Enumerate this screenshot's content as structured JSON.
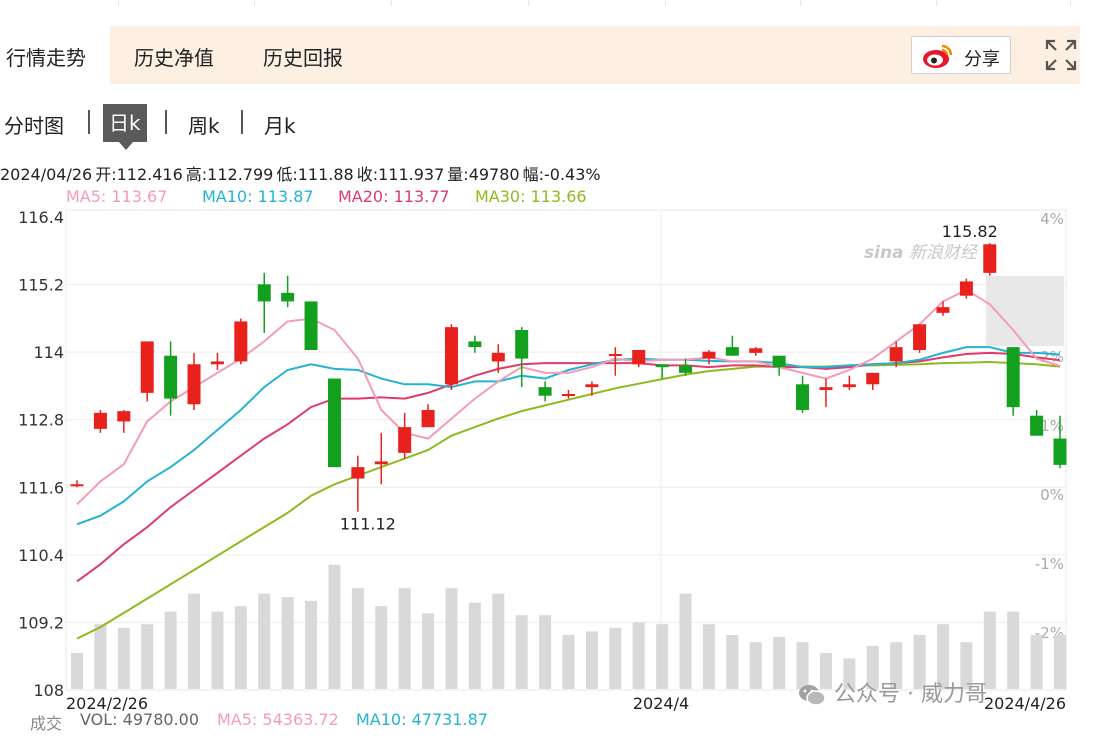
{
  "tabs": {
    "market": "行情走势",
    "nav_history": "历史净值",
    "return_history": "历史回报",
    "share": "分享"
  },
  "subtabs": [
    "分时图",
    "日k",
    "周k",
    "月k"
  ],
  "info": {
    "date": "2024/04/26",
    "open": "开:112.416",
    "high": "高:112.799",
    "low": "低:111.88",
    "close": "收:111.937",
    "volume": "量:49780",
    "change": "幅:-0.43%"
  },
  "ma_legend": [
    {
      "label": "MA5: 113.67",
      "color": "#f49cb6"
    },
    {
      "label": "MA10: 113.87",
      "color": "#25b3d4"
    },
    {
      "label": "MA20: 113.77",
      "color": "#e03b6a"
    },
    {
      "label": "MA30: 113.66",
      "color": "#8fba1d"
    }
  ],
  "vol_legend": {
    "title": "成交",
    "vol": "VOL: 49780.00",
    "ma5": "MA5: 54363.72",
    "ma10": "MA10: 47731.87"
  },
  "watermarks": {
    "sina_logo": "sina",
    "sina": "新浪财经",
    "wechat": "公众号 · 威力哥"
  },
  "colors": {
    "up": "#e8211c",
    "down": "#12a01e",
    "volume": "#d9d9d9",
    "ma5": "#f49cb6",
    "ma10": "#25b3d4",
    "ma20": "#e03b6a",
    "ma30": "#8fba1d"
  },
  "chart_data": {
    "type": "candlestick",
    "y_ticks": [
      "116.4",
      "115.2",
      "114",
      "112.8",
      "111.6",
      "110.4",
      "109.2",
      "108"
    ],
    "pct_ticks": [
      "4%",
      "3%",
      "2%",
      "1%",
      "0%",
      "-1%",
      "-2%"
    ],
    "x_ticks": [
      "2024/2/26",
      "2024/4",
      "2024/4/26"
    ],
    "ylim": [
      108,
      116.4
    ],
    "annotations": {
      "high": "115.82",
      "low": "111.12"
    },
    "candles": [
      {
        "o": 111.6,
        "h": 111.67,
        "l": 111.55,
        "c": 111.6,
        "up": true
      },
      {
        "o": 112.57,
        "h": 112.9,
        "l": 112.5,
        "c": 112.85,
        "up": true
      },
      {
        "o": 112.7,
        "h": 112.9,
        "l": 112.5,
        "c": 112.88,
        "up": true
      },
      {
        "o": 113.2,
        "h": 114.1,
        "l": 113.05,
        "c": 114.1,
        "up": true
      },
      {
        "o": 113.85,
        "h": 114.1,
        "l": 112.8,
        "c": 113.1,
        "up": false
      },
      {
        "o": 113.0,
        "h": 113.9,
        "l": 112.9,
        "c": 113.7,
        "up": true
      },
      {
        "o": 113.7,
        "h": 113.9,
        "l": 113.6,
        "c": 113.75,
        "up": true
      },
      {
        "o": 113.75,
        "h": 114.5,
        "l": 113.7,
        "c": 114.45,
        "up": true
      },
      {
        "o": 115.1,
        "h": 115.3,
        "l": 114.25,
        "c": 114.8,
        "up": false
      },
      {
        "o": 114.95,
        "h": 115.25,
        "l": 114.7,
        "c": 114.8,
        "up": false
      },
      {
        "o": 114.8,
        "h": 114.8,
        "l": 113.95,
        "c": 113.95,
        "up": false
      },
      {
        "o": 113.45,
        "h": 113.45,
        "l": 111.95,
        "c": 111.9,
        "up": false
      },
      {
        "o": 111.7,
        "h": 112.1,
        "l": 111.12,
        "c": 111.9,
        "up": true
      },
      {
        "o": 111.95,
        "h": 112.5,
        "l": 111.6,
        "c": 112.0,
        "up": true
      },
      {
        "o": 112.15,
        "h": 112.85,
        "l": 112.05,
        "c": 112.6,
        "up": true
      },
      {
        "o": 112.6,
        "h": 113.0,
        "l": 112.6,
        "c": 112.9,
        "up": true
      },
      {
        "o": 113.35,
        "h": 114.4,
        "l": 113.25,
        "c": 114.35,
        "up": true
      },
      {
        "o": 114.1,
        "h": 114.2,
        "l": 113.9,
        "c": 114.0,
        "up": false
      },
      {
        "o": 113.75,
        "h": 114.05,
        "l": 113.55,
        "c": 113.9,
        "up": true
      },
      {
        "o": 114.3,
        "h": 114.35,
        "l": 113.3,
        "c": 113.8,
        "up": false
      },
      {
        "o": 113.3,
        "h": 113.4,
        "l": 113.05,
        "c": 113.15,
        "up": false
      },
      {
        "o": 113.15,
        "h": 113.25,
        "l": 113.1,
        "c": 113.18,
        "up": true
      },
      {
        "o": 113.3,
        "h": 113.4,
        "l": 113.15,
        "c": 113.35,
        "up": true
      },
      {
        "o": 113.85,
        "h": 114.0,
        "l": 113.5,
        "c": 113.88,
        "up": true
      },
      {
        "o": 113.7,
        "h": 113.95,
        "l": 113.65,
        "c": 113.95,
        "up": true
      },
      {
        "o": 113.7,
        "h": 113.7,
        "l": 113.45,
        "c": 113.65,
        "up": false
      },
      {
        "o": 113.68,
        "h": 113.8,
        "l": 113.5,
        "c": 113.55,
        "up": false
      },
      {
        "o": 113.8,
        "h": 113.95,
        "l": 113.7,
        "c": 113.92,
        "up": true
      },
      {
        "o": 114.0,
        "h": 114.2,
        "l": 113.85,
        "c": 113.85,
        "up": false
      },
      {
        "o": 113.9,
        "h": 114.0,
        "l": 113.85,
        "c": 113.98,
        "up": true
      },
      {
        "o": 113.85,
        "h": 113.85,
        "l": 113.5,
        "c": 113.65,
        "up": false
      },
      {
        "o": 113.35,
        "h": 113.5,
        "l": 112.85,
        "c": 112.9,
        "up": false
      },
      {
        "o": 113.25,
        "h": 113.45,
        "l": 112.95,
        "c": 113.3,
        "up": true
      },
      {
        "o": 113.3,
        "h": 113.5,
        "l": 113.25,
        "c": 113.35,
        "up": true
      },
      {
        "o": 113.35,
        "h": 113.55,
        "l": 113.25,
        "c": 113.55,
        "up": true
      },
      {
        "o": 113.75,
        "h": 114.1,
        "l": 113.65,
        "c": 114.0,
        "up": true
      },
      {
        "o": 113.95,
        "h": 114.4,
        "l": 113.9,
        "c": 114.4,
        "up": true
      },
      {
        "o": 114.6,
        "h": 114.8,
        "l": 114.55,
        "c": 114.7,
        "up": true
      },
      {
        "o": 114.9,
        "h": 115.2,
        "l": 114.85,
        "c": 115.15,
        "up": true
      },
      {
        "o": 115.3,
        "h": 115.82,
        "l": 115.25,
        "c": 115.8,
        "up": true
      },
      {
        "o": 114.0,
        "h": 114.0,
        "l": 112.8,
        "c": 112.95,
        "up": false
      },
      {
        "o": 112.8,
        "h": 112.9,
        "l": 112.45,
        "c": 112.45,
        "up": false
      },
      {
        "o": 112.4,
        "h": 112.8,
        "l": 111.88,
        "c": 111.94,
        "up": false
      }
    ],
    "volume": [
      0.2,
      0.36,
      0.34,
      0.36,
      0.43,
      0.53,
      0.43,
      0.46,
      0.53,
      0.51,
      0.49,
      0.69,
      0.56,
      0.46,
      0.56,
      0.42,
      0.56,
      0.48,
      0.53,
      0.41,
      0.41,
      0.3,
      0.32,
      0.34,
      0.37,
      0.36,
      0.53,
      0.36,
      0.3,
      0.26,
      0.29,
      0.26,
      0.2,
      0.17,
      0.24,
      0.26,
      0.3,
      0.36,
      0.26,
      0.43,
      0.43,
      0.3,
      0.3
    ],
    "ma5": [
      111.25,
      111.65,
      111.95,
      112.7,
      113.05,
      113.3,
      113.55,
      113.8,
      114.1,
      114.45,
      114.5,
      114.3,
      113.8,
      112.9,
      112.5,
      112.4,
      112.75,
      113.1,
      113.4,
      113.65,
      113.55,
      113.55,
      113.65,
      113.8,
      113.75,
      113.78,
      113.78,
      113.82,
      113.75,
      113.75,
      113.65,
      113.55,
      113.45,
      113.6,
      113.8,
      114.1,
      114.4,
      114.8,
      115.0,
      114.75,
      114.3,
      113.8,
      113.67
    ],
    "ma10": [
      110.9,
      111.05,
      111.3,
      111.65,
      111.9,
      112.2,
      112.55,
      112.9,
      113.3,
      113.6,
      113.7,
      113.62,
      113.6,
      113.45,
      113.35,
      113.35,
      113.3,
      113.4,
      113.4,
      113.5,
      113.45,
      113.6,
      113.7,
      113.78,
      113.8,
      113.78,
      113.78,
      113.76,
      113.75,
      113.75,
      113.72,
      113.65,
      113.65,
      113.68,
      113.7,
      113.72,
      113.78,
      113.9,
      114.0,
      114.0,
      113.9,
      113.9,
      113.87
    ],
    "ma20": [
      109.9,
      110.2,
      110.55,
      110.85,
      111.2,
      111.5,
      111.8,
      112.1,
      112.4,
      112.65,
      112.95,
      113.1,
      113.1,
      113.12,
      113.1,
      113.2,
      113.35,
      113.5,
      113.62,
      113.7,
      113.72,
      113.72,
      113.72,
      113.72,
      113.72,
      113.68,
      113.68,
      113.65,
      113.68,
      113.68,
      113.65,
      113.65,
      113.62,
      113.65,
      113.7,
      113.72,
      113.75,
      113.82,
      113.88,
      113.9,
      113.88,
      113.82,
      113.77
    ],
    "ma30": [
      108.9,
      109.1,
      109.35,
      109.6,
      109.85,
      110.1,
      110.35,
      110.6,
      110.85,
      111.1,
      111.4,
      111.6,
      111.75,
      111.9,
      112.05,
      112.2,
      112.45,
      112.6,
      112.75,
      112.88,
      112.98,
      113.08,
      113.18,
      113.28,
      113.36,
      113.44,
      113.52,
      113.58,
      113.62,
      113.66,
      113.66,
      113.66,
      113.66,
      113.68,
      113.68,
      113.69,
      113.7,
      113.72,
      113.73,
      113.74,
      113.72,
      113.7,
      113.66
    ]
  }
}
